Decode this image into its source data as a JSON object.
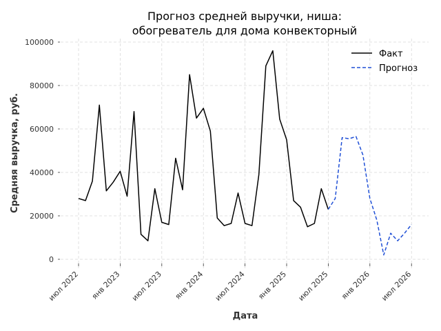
{
  "chart_data": {
    "type": "line",
    "title": [
      "Прогноз средней выручки, ниша:",
      "обогреватель для дома конвекторный"
    ],
    "xlabel": "Дата",
    "ylabel": "Средняя выручка, руб.",
    "ylim": [
      0,
      100000
    ],
    "yticks": [
      0,
      20000,
      40000,
      60000,
      80000,
      100000
    ],
    "xtick_labels": [
      "июл 2022",
      "янв 2023",
      "июл 2023",
      "янв 2024",
      "июл 2024",
      "янв 2025",
      "июл 2025",
      "янв 2026",
      "июл 2026"
    ],
    "grid": true,
    "legend_position": "top-right",
    "series": [
      {
        "name": "Факт",
        "color": "#000000",
        "style": "solid",
        "x": [
          "2022-07",
          "2022-08",
          "2022-09",
          "2022-10",
          "2022-11",
          "2022-12",
          "2023-01",
          "2023-02",
          "2023-03",
          "2023-04",
          "2023-05",
          "2023-06",
          "2023-07",
          "2023-08",
          "2023-09",
          "2023-10",
          "2023-11",
          "2023-12",
          "2024-01",
          "2024-02",
          "2024-03",
          "2024-04",
          "2024-05",
          "2024-06",
          "2024-07",
          "2024-08",
          "2024-09",
          "2024-10",
          "2024-11",
          "2024-12",
          "2025-01",
          "2025-02",
          "2025-03",
          "2025-04",
          "2025-05",
          "2025-06",
          "2025-07"
        ],
        "values": [
          28000,
          27000,
          36000,
          71000,
          31500,
          35500,
          40500,
          29000,
          68000,
          11500,
          8500,
          32500,
          17000,
          16000,
          46500,
          32000,
          85000,
          65000,
          69500,
          59000,
          19000,
          15500,
          16500,
          30500,
          16500,
          15500,
          39000,
          89000,
          96000,
          64500,
          55000,
          27000,
          24000,
          15000,
          16500,
          32500,
          23000
        ]
      },
      {
        "name": "Прогноз",
        "color": "#1f4fd6",
        "style": "dashed",
        "x": [
          "2025-07",
          "2025-08",
          "2025-09",
          "2025-10",
          "2025-11",
          "2025-12",
          "2026-01",
          "2026-02",
          "2026-03",
          "2026-04",
          "2026-05",
          "2026-06",
          "2026-07"
        ],
        "values": [
          23000,
          28000,
          56000,
          55500,
          56500,
          48000,
          28000,
          18000,
          2000,
          12000,
          8500,
          12000,
          16000
        ]
      }
    ]
  }
}
